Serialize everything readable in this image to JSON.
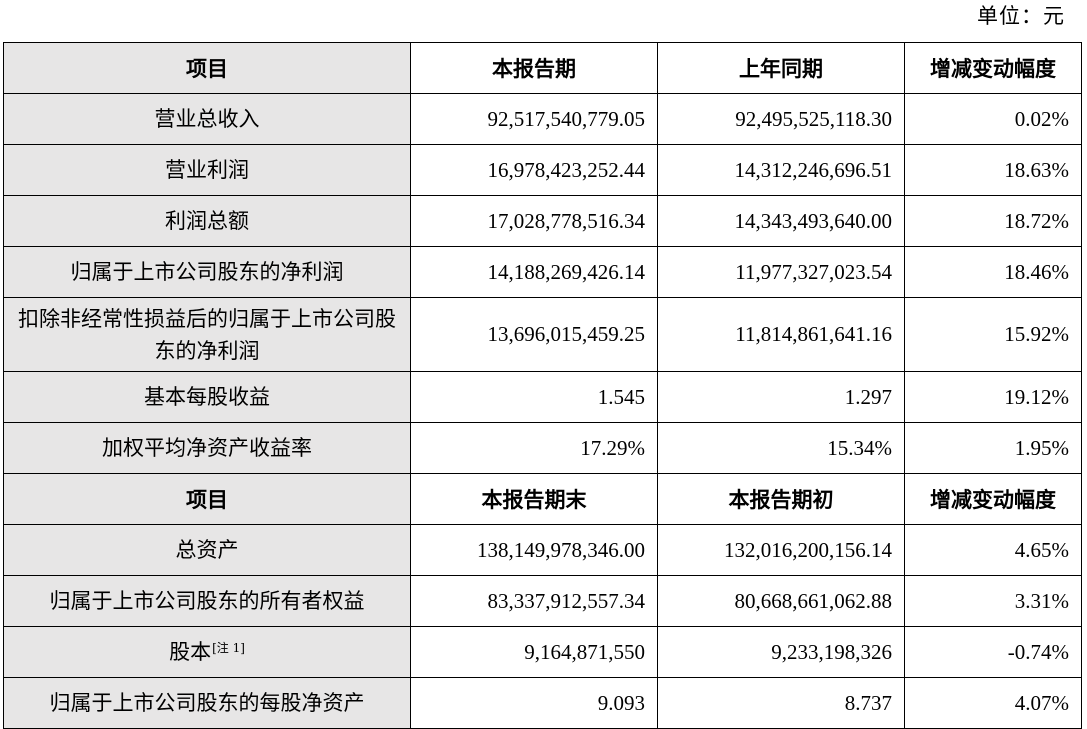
{
  "unit_label": "单位：元",
  "section1": {
    "headers": [
      "项目",
      "本报告期",
      "上年同期",
      "增减变动幅度"
    ],
    "rows": [
      {
        "item": "营业总收入",
        "current": "92,517,540,779.05",
        "previous": "92,495,525,118.30",
        "change": "0.02%"
      },
      {
        "item": "营业利润",
        "current": "16,978,423,252.44",
        "previous": "14,312,246,696.51",
        "change": "18.63%"
      },
      {
        "item": "利润总额",
        "current": "17,028,778,516.34",
        "previous": "14,343,493,640.00",
        "change": "18.72%"
      },
      {
        "item": "归属于上市公司股东的净利润",
        "current": "14,188,269,426.14",
        "previous": "11,977,327,023.54",
        "change": "18.46%"
      },
      {
        "item": "扣除非经常性损益后的归属于上市公司股东的净利润",
        "current": "13,696,015,459.25",
        "previous": "11,814,861,641.16",
        "change": "15.92%"
      },
      {
        "item": "基本每股收益",
        "current": "1.545",
        "previous": "1.297",
        "change": "19.12%"
      },
      {
        "item": "加权平均净资产收益率",
        "current": "17.29%",
        "previous": "15.34%",
        "change": "1.95%"
      }
    ]
  },
  "section2": {
    "headers": [
      "项目",
      "本报告期末",
      "本报告期初",
      "增减变动幅度"
    ],
    "rows": [
      {
        "item": "总资产",
        "current": "138,149,978,346.00",
        "previous": "132,016,200,156.14",
        "change": "4.65%"
      },
      {
        "item": "归属于上市公司股东的所有者权益",
        "current": "83,337,912,557.34",
        "previous": "80,668,661,062.88",
        "change": "3.31%"
      },
      {
        "item": "股本",
        "item_note": "[注 1]",
        "current": "9,164,871,550",
        "previous": "9,233,198,326",
        "change": "-0.74%"
      },
      {
        "item": "归属于上市公司股东的每股净资产",
        "current": "9.093",
        "previous": "8.737",
        "change": "4.07%"
      }
    ]
  }
}
